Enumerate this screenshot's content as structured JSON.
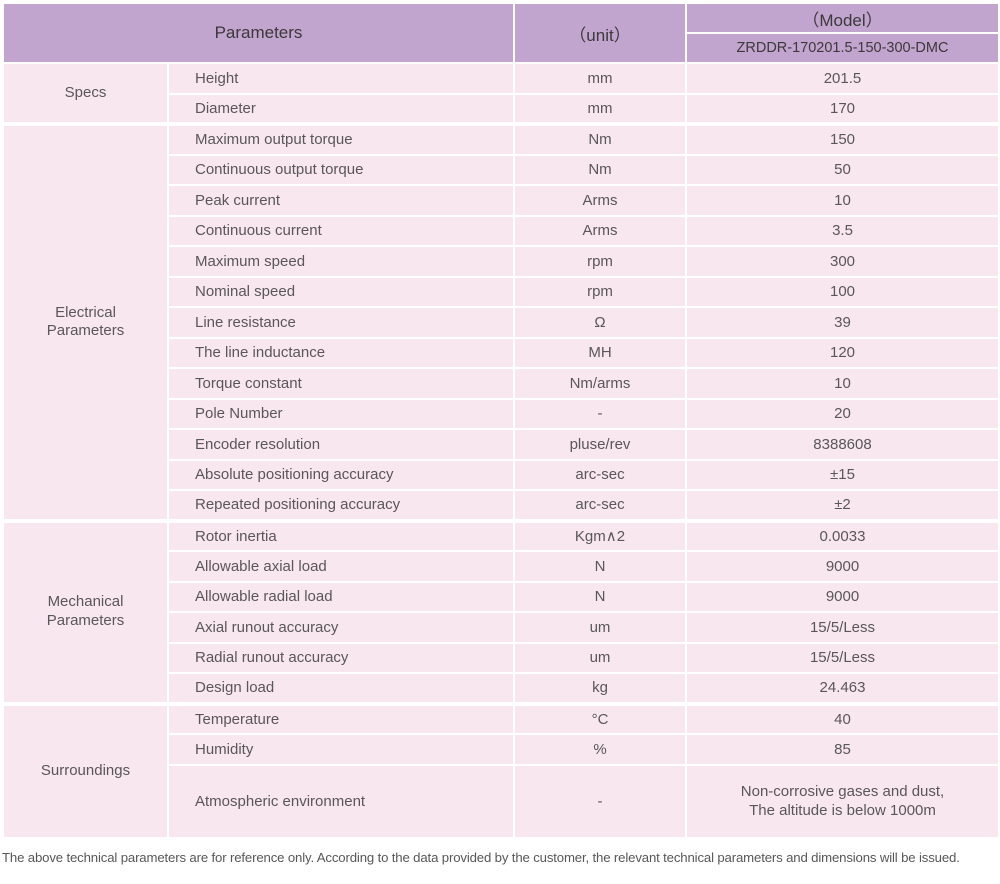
{
  "colors": {
    "header_bg": "#c2a5ce",
    "row_bg": "#f9e7f0",
    "border": "#ffffff",
    "header_text": "#3c383b",
    "body_text": "#595757"
  },
  "header": {
    "parameters_label": "Parameters",
    "unit_label": "（unit）",
    "model_label": "（Model）",
    "model_value": "ZRDDR-170201.5-150-300-DMC"
  },
  "groups": [
    {
      "name": "Specs",
      "rows": [
        {
          "param": "Height",
          "unit": "mm",
          "value": "201.5"
        },
        {
          "param": "Diameter",
          "unit": "mm",
          "value": "170"
        }
      ]
    },
    {
      "name": "Electrical\nParameters",
      "rows": [
        {
          "param": "Maximum output torque",
          "unit": "Nm",
          "value": "150"
        },
        {
          "param": "Continuous output torque",
          "unit": "Nm",
          "value": "50"
        },
        {
          "param": "Peak current",
          "unit": "Arms",
          "value": "10"
        },
        {
          "param": "Continuous current",
          "unit": "Arms",
          "value": "3.5"
        },
        {
          "param": "Maximum speed",
          "unit": "rpm",
          "value": "300"
        },
        {
          "param": "Nominal speed",
          "unit": "rpm",
          "value": "100"
        },
        {
          "param": "Line resistance",
          "unit": "Ω",
          "value": "39"
        },
        {
          "param": "The line inductance",
          "unit": "MH",
          "value": "120"
        },
        {
          "param": "Torque constant",
          "unit": "Nm/arms",
          "value": "10"
        },
        {
          "param": "Pole Number",
          "unit": "-",
          "value": "20"
        },
        {
          "param": "Encoder resolution",
          "unit": "pluse/rev",
          "value": "8388608"
        },
        {
          "param": "Absolute positioning accuracy",
          "unit": "arc-sec",
          "value": "±15"
        },
        {
          "param": "Repeated positioning accuracy",
          "unit": "arc-sec",
          "value": "±2"
        }
      ]
    },
    {
      "name": "Mechanical\nParameters",
      "rows": [
        {
          "param": "Rotor inertia",
          "unit": "Kgm∧2",
          "value": "0.0033"
        },
        {
          "param": "Allowable axial load",
          "unit": "N",
          "value": "9000"
        },
        {
          "param": "Allowable radial load",
          "unit": "N",
          "value": "9000"
        },
        {
          "param": "Axial runout accuracy",
          "unit": "um",
          "value": "15/5/Less"
        },
        {
          "param": "Radial runout accuracy",
          "unit": "um",
          "value": "15/5/Less"
        },
        {
          "param": "Design load",
          "unit": "kg",
          "value": "24.463"
        }
      ]
    },
    {
      "name": "Surroundings",
      "rows": [
        {
          "param": "Temperature",
          "unit": "°C",
          "value": "40"
        },
        {
          "param": "Humidity",
          "unit": "%",
          "value": "85"
        },
        {
          "param": "Atmospheric environment",
          "unit": "-",
          "value": "Non-corrosive gases and dust,\nThe altitude is below 1000m",
          "tall": true
        }
      ]
    }
  ],
  "footer": {
    "note": "The above technical parameters are for reference only. According to the data provided by the customer, the relevant technical parameters and dimensions will be issued."
  }
}
